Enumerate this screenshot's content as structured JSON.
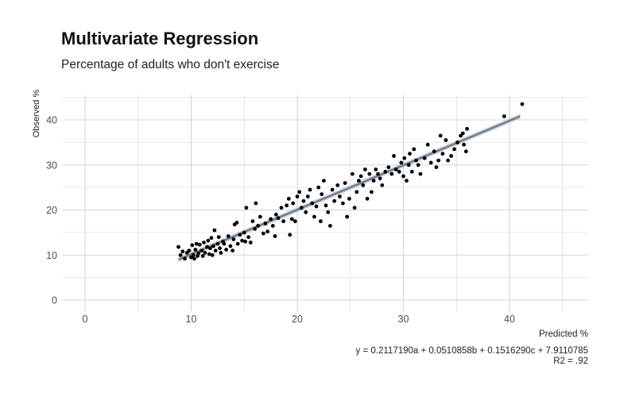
{
  "chart_data": {
    "type": "scatter",
    "title": "Multivariate Regression",
    "subtitle": "Percentage of adults who don't exercise",
    "xlabel": "Predicted %",
    "ylabel": "Observed %",
    "xlim": [
      -2,
      45
    ],
    "ylim": [
      -2.5,
      46
    ],
    "xticks": [
      0,
      10,
      20,
      30,
      40
    ],
    "yticks": [
      0,
      10,
      20,
      30,
      40
    ],
    "xtick_labels": [
      "0",
      "10",
      "20",
      "30",
      "40"
    ],
    "ytick_labels": [
      "0",
      "10",
      "20",
      "30",
      "40"
    ],
    "grid": true,
    "caption": [
      "y = 0.2117190a + 0.0510858b + 0.1516290c + 7.9110785",
      "R2 = .92"
    ],
    "fit": {
      "x": [
        8.8,
        41.0
      ],
      "y": [
        9.0,
        40.8
      ],
      "color": "#6a7c8c",
      "band_color": "#c8cdd2"
    },
    "point_color": "#000000",
    "points": [
      [
        8.8,
        11.8
      ],
      [
        9.0,
        10.0
      ],
      [
        9.2,
        10.8
      ],
      [
        9.4,
        9.2
      ],
      [
        9.6,
        10.5
      ],
      [
        9.8,
        11.0
      ],
      [
        10.0,
        9.5
      ],
      [
        10.1,
        12.2
      ],
      [
        10.2,
        10.0
      ],
      [
        10.3,
        9.2
      ],
      [
        10.4,
        11.2
      ],
      [
        10.5,
        12.5
      ],
      [
        10.6,
        9.8
      ],
      [
        10.7,
        10.4
      ],
      [
        10.8,
        12.3
      ],
      [
        11.0,
        11.0
      ],
      [
        11.1,
        9.8
      ],
      [
        11.2,
        12.8
      ],
      [
        11.3,
        10.5
      ],
      [
        11.5,
        11.8
      ],
      [
        11.6,
        13.2
      ],
      [
        11.7,
        10.2
      ],
      [
        11.8,
        11.5
      ],
      [
        11.9,
        13.8
      ],
      [
        12.0,
        10.0
      ],
      [
        12.1,
        12.0
      ],
      [
        12.2,
        15.5
      ],
      [
        12.3,
        11.0
      ],
      [
        12.5,
        12.5
      ],
      [
        12.6,
        14.0
      ],
      [
        12.7,
        11.5
      ],
      [
        12.8,
        10.5
      ],
      [
        13.0,
        13.0
      ],
      [
        13.1,
        12.5
      ],
      [
        13.3,
        11.2
      ],
      [
        13.5,
        14.2
      ],
      [
        13.7,
        12.0
      ],
      [
        13.9,
        11.0
      ],
      [
        14.0,
        13.5
      ],
      [
        14.1,
        16.8
      ],
      [
        14.3,
        17.2
      ],
      [
        14.4,
        12.5
      ],
      [
        14.6,
        14.5
      ],
      [
        14.8,
        13.2
      ],
      [
        15.0,
        15.0
      ],
      [
        15.1,
        13.0
      ],
      [
        15.2,
        20.5
      ],
      [
        15.4,
        14.0
      ],
      [
        15.6,
        12.8
      ],
      [
        15.8,
        17.5
      ],
      [
        16.0,
        15.8
      ],
      [
        16.1,
        21.5
      ],
      [
        16.3,
        16.5
      ],
      [
        16.5,
        18.5
      ],
      [
        16.8,
        14.8
      ],
      [
        17.0,
        17.0
      ],
      [
        17.2,
        15.2
      ],
      [
        17.5,
        18.0
      ],
      [
        17.7,
        16.5
      ],
      [
        17.9,
        14.2
      ],
      [
        18.0,
        19.0
      ],
      [
        18.2,
        18.2
      ],
      [
        18.5,
        20.5
      ],
      [
        18.7,
        17.5
      ],
      [
        19.0,
        21.0
      ],
      [
        19.2,
        22.5
      ],
      [
        19.3,
        14.5
      ],
      [
        19.5,
        18.0
      ],
      [
        19.6,
        21.5
      ],
      [
        19.8,
        17.5
      ],
      [
        20.0,
        23.0
      ],
      [
        20.2,
        24.0
      ],
      [
        20.4,
        20.5
      ],
      [
        20.6,
        22.0
      ],
      [
        20.8,
        19.5
      ],
      [
        21.0,
        23.0
      ],
      [
        21.2,
        24.5
      ],
      [
        21.4,
        21.5
      ],
      [
        21.6,
        18.5
      ],
      [
        21.8,
        20.8
      ],
      [
        22.0,
        25.0
      ],
      [
        22.2,
        17.5
      ],
      [
        22.3,
        23.5
      ],
      [
        22.5,
        26.5
      ],
      [
        22.7,
        21.0
      ],
      [
        22.9,
        19.5
      ],
      [
        23.1,
        16.5
      ],
      [
        23.3,
        24.5
      ],
      [
        23.5,
        22.0
      ],
      [
        23.8,
        25.5
      ],
      [
        24.0,
        23.0
      ],
      [
        24.3,
        21.5
      ],
      [
        24.5,
        26.0
      ],
      [
        24.7,
        18.5
      ],
      [
        24.9,
        22.5
      ],
      [
        25.2,
        28.0
      ],
      [
        25.4,
        20.5
      ],
      [
        25.6,
        24.0
      ],
      [
        25.8,
        26.5
      ],
      [
        26.0,
        27.5
      ],
      [
        26.2,
        25.5
      ],
      [
        26.4,
        29.0
      ],
      [
        26.6,
        22.5
      ],
      [
        26.8,
        28.0
      ],
      [
        27.0,
        24.0
      ],
      [
        27.2,
        26.5
      ],
      [
        27.4,
        29.0
      ],
      [
        27.6,
        28.0
      ],
      [
        27.8,
        27.0
      ],
      [
        28.0,
        25.5
      ],
      [
        28.3,
        28.5
      ],
      [
        28.6,
        29.5
      ],
      [
        28.9,
        28.0
      ],
      [
        29.1,
        32.0
      ],
      [
        29.3,
        29.0
      ],
      [
        29.6,
        28.5
      ],
      [
        29.8,
        30.5
      ],
      [
        30.0,
        27.5
      ],
      [
        30.1,
        31.5
      ],
      [
        30.3,
        26.5
      ],
      [
        30.5,
        30.0
      ],
      [
        30.6,
        32.5
      ],
      [
        30.8,
        28.5
      ],
      [
        31.0,
        33.5
      ],
      [
        31.2,
        31.0
      ],
      [
        31.4,
        30.0
      ],
      [
        31.6,
        28.0
      ],
      [
        32.0,
        31.5
      ],
      [
        32.3,
        34.5
      ],
      [
        32.6,
        30.5
      ],
      [
        32.9,
        33.0
      ],
      [
        33.1,
        29.5
      ],
      [
        33.3,
        31.0
      ],
      [
        33.5,
        36.5
      ],
      [
        33.7,
        32.5
      ],
      [
        34.0,
        35.5
      ],
      [
        34.2,
        31.0
      ],
      [
        34.5,
        32.0
      ],
      [
        34.8,
        33.5
      ],
      [
        35.1,
        35.0
      ],
      [
        35.4,
        36.5
      ],
      [
        35.6,
        37.0
      ],
      [
        35.7,
        34.5
      ],
      [
        35.9,
        33.0
      ],
      [
        36.0,
        38.0
      ],
      [
        39.5,
        40.8
      ],
      [
        41.2,
        43.5
      ]
    ]
  }
}
